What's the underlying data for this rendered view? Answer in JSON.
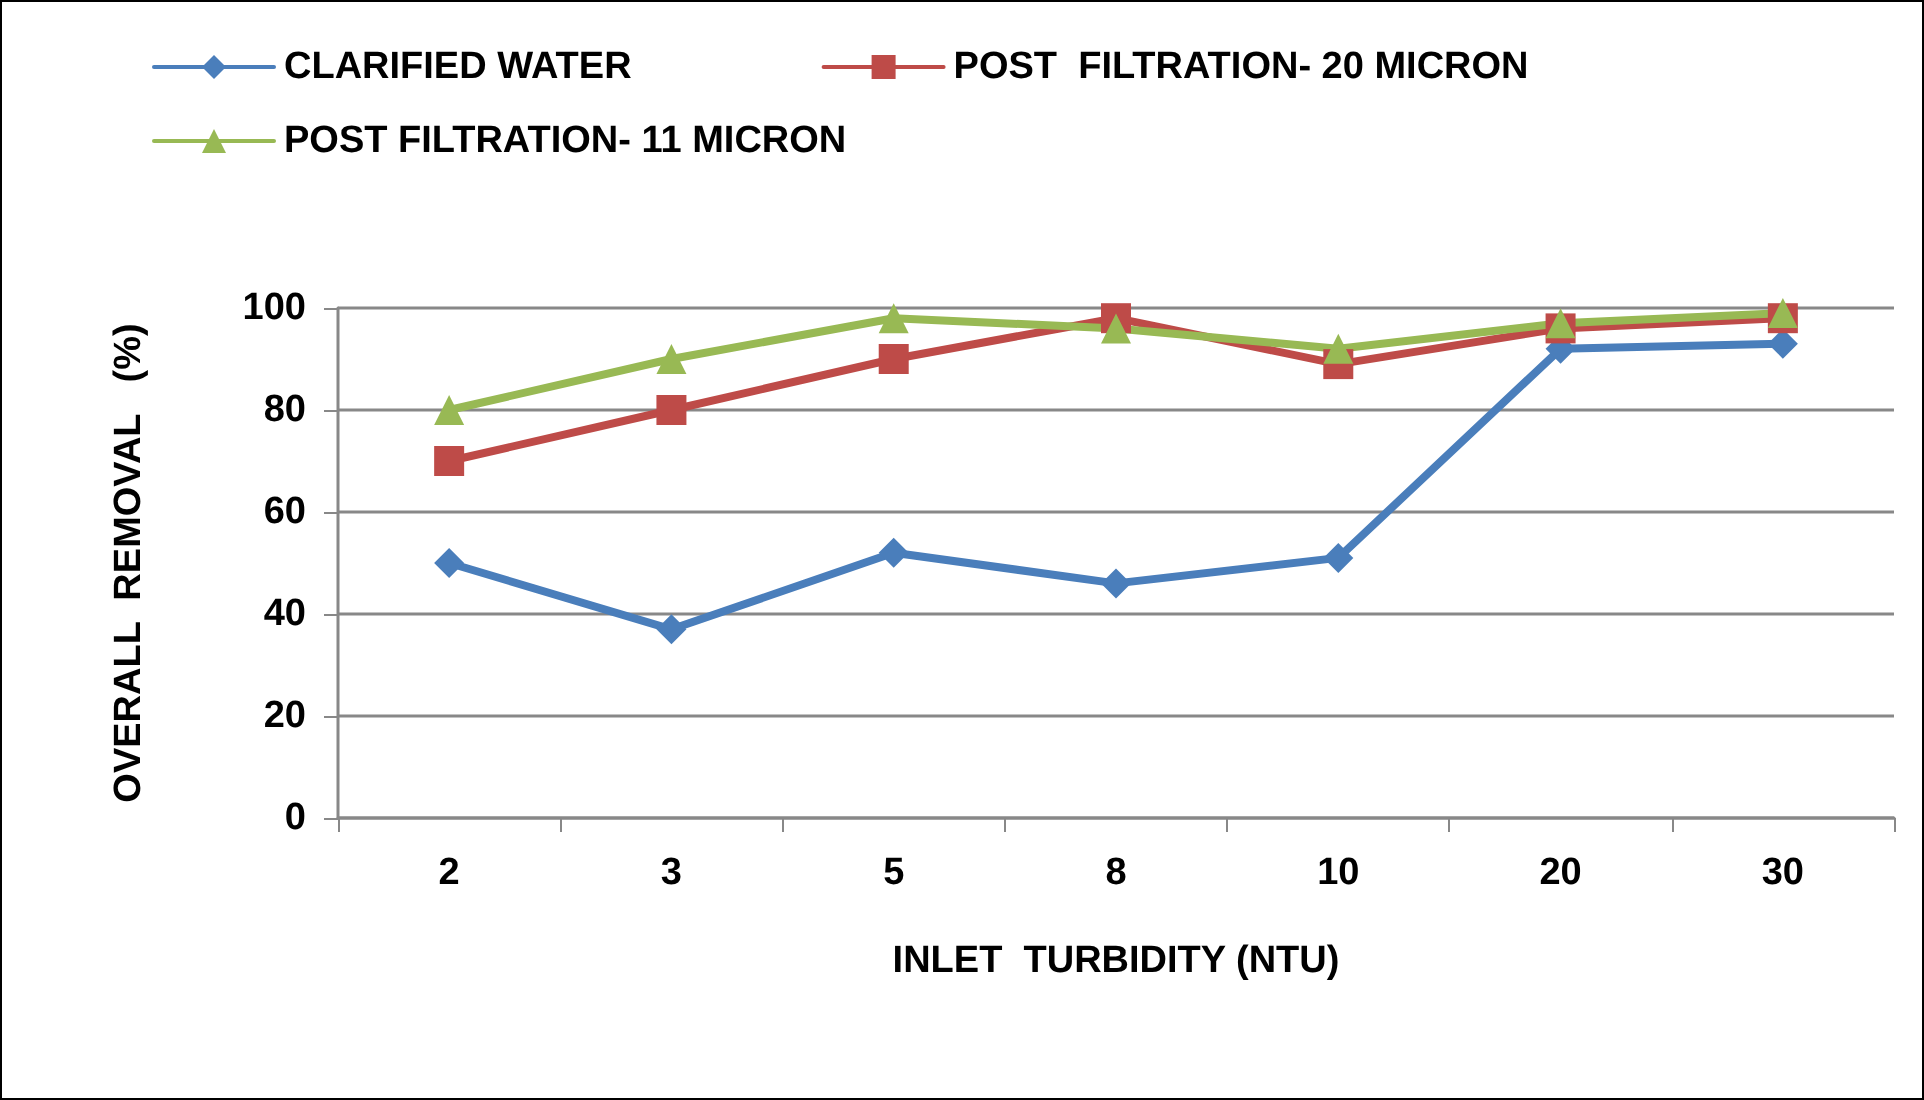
{
  "chart_data": {
    "type": "line",
    "xlabel": "INLET  TURBIDITY (NTU)",
    "ylabel": "OVERALL  REMOVAL   (%)",
    "categories": [
      "2",
      "3",
      "5",
      "8",
      "10",
      "20",
      "30"
    ],
    "series": [
      {
        "name": "CLARIFIED WATER",
        "color": "#4a7ebb",
        "marker": "diamond",
        "values": [
          50,
          37,
          52,
          46,
          51,
          92,
          93
        ]
      },
      {
        "name": "POST  FILTRATION- 20 MICRON",
        "color": "#be4b48",
        "marker": "square",
        "values": [
          70,
          80,
          90,
          98,
          89,
          96,
          98
        ]
      },
      {
        "name": "POST FILTRATION- 11 MICRON",
        "color": "#98b954",
        "marker": "triangle",
        "values": [
          80,
          90,
          98,
          96,
          92,
          97,
          99
        ]
      }
    ],
    "ylim": [
      0,
      100
    ],
    "yticks": [
      0,
      20,
      40,
      60,
      80,
      100
    ],
    "grid": "y",
    "legend": "top left",
    "line_style": "solid"
  }
}
